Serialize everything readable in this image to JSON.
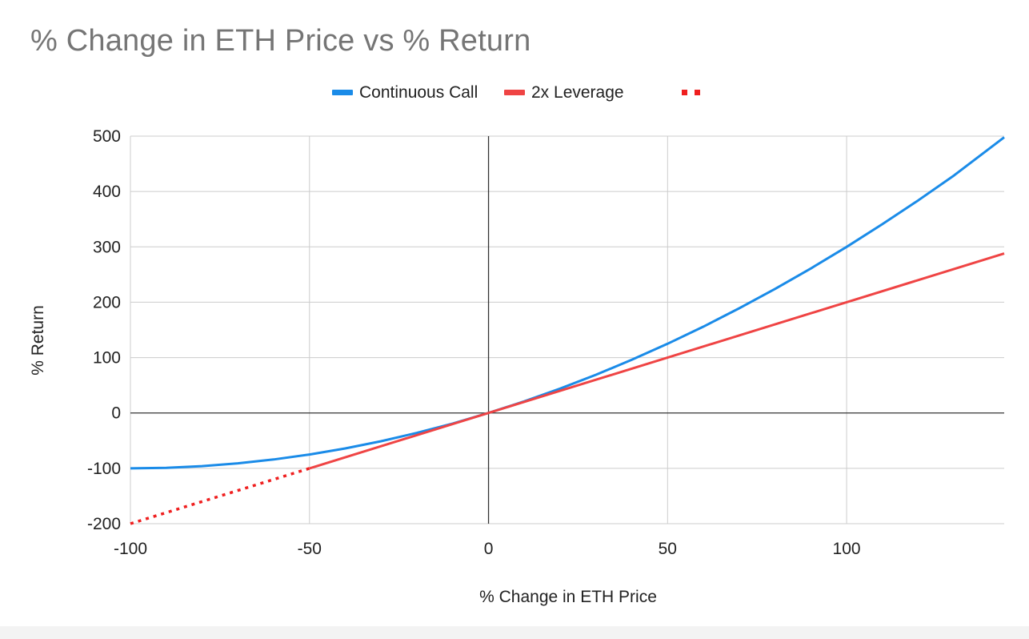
{
  "chart_data": {
    "type": "line",
    "title": "% Change in ETH Price vs % Return",
    "xlabel": "% Change in ETH Price",
    "ylabel": "% Return",
    "xlim": [
      -100,
      144
    ],
    "ylim": [
      -200,
      500
    ],
    "xticks": [
      -100,
      -50,
      0,
      50,
      100
    ],
    "yticks": [
      -200,
      -100,
      0,
      100,
      200,
      300,
      400,
      500
    ],
    "grid": true,
    "legend_position": "top-center",
    "series": [
      {
        "name": "Continuous Call",
        "color": "#1a8be8",
        "style": "solid",
        "x": [
          -100,
          -90,
          -80,
          -70,
          -60,
          -50,
          -40,
          -30,
          -20,
          -10,
          0,
          10,
          20,
          30,
          40,
          50,
          60,
          70,
          80,
          90,
          100,
          110,
          120,
          130,
          144
        ],
        "y": [
          -100,
          -99,
          -96,
          -91,
          -84,
          -75,
          -64,
          -51,
          -36,
          -19,
          0,
          21,
          44,
          69,
          96,
          125,
          156,
          189,
          224,
          261,
          300,
          341,
          384,
          429,
          498
        ]
      },
      {
        "name": "2x Leverage",
        "color": "#ef4444",
        "style": "solid",
        "x": [
          -50,
          0,
          100,
          144
        ],
        "y": [
          -100,
          0,
          200,
          288
        ]
      },
      {
        "name": "",
        "color": "#ef1f1f",
        "style": "dotted",
        "x": [
          -100,
          -50
        ],
        "y": [
          -200,
          -100
        ]
      }
    ]
  }
}
